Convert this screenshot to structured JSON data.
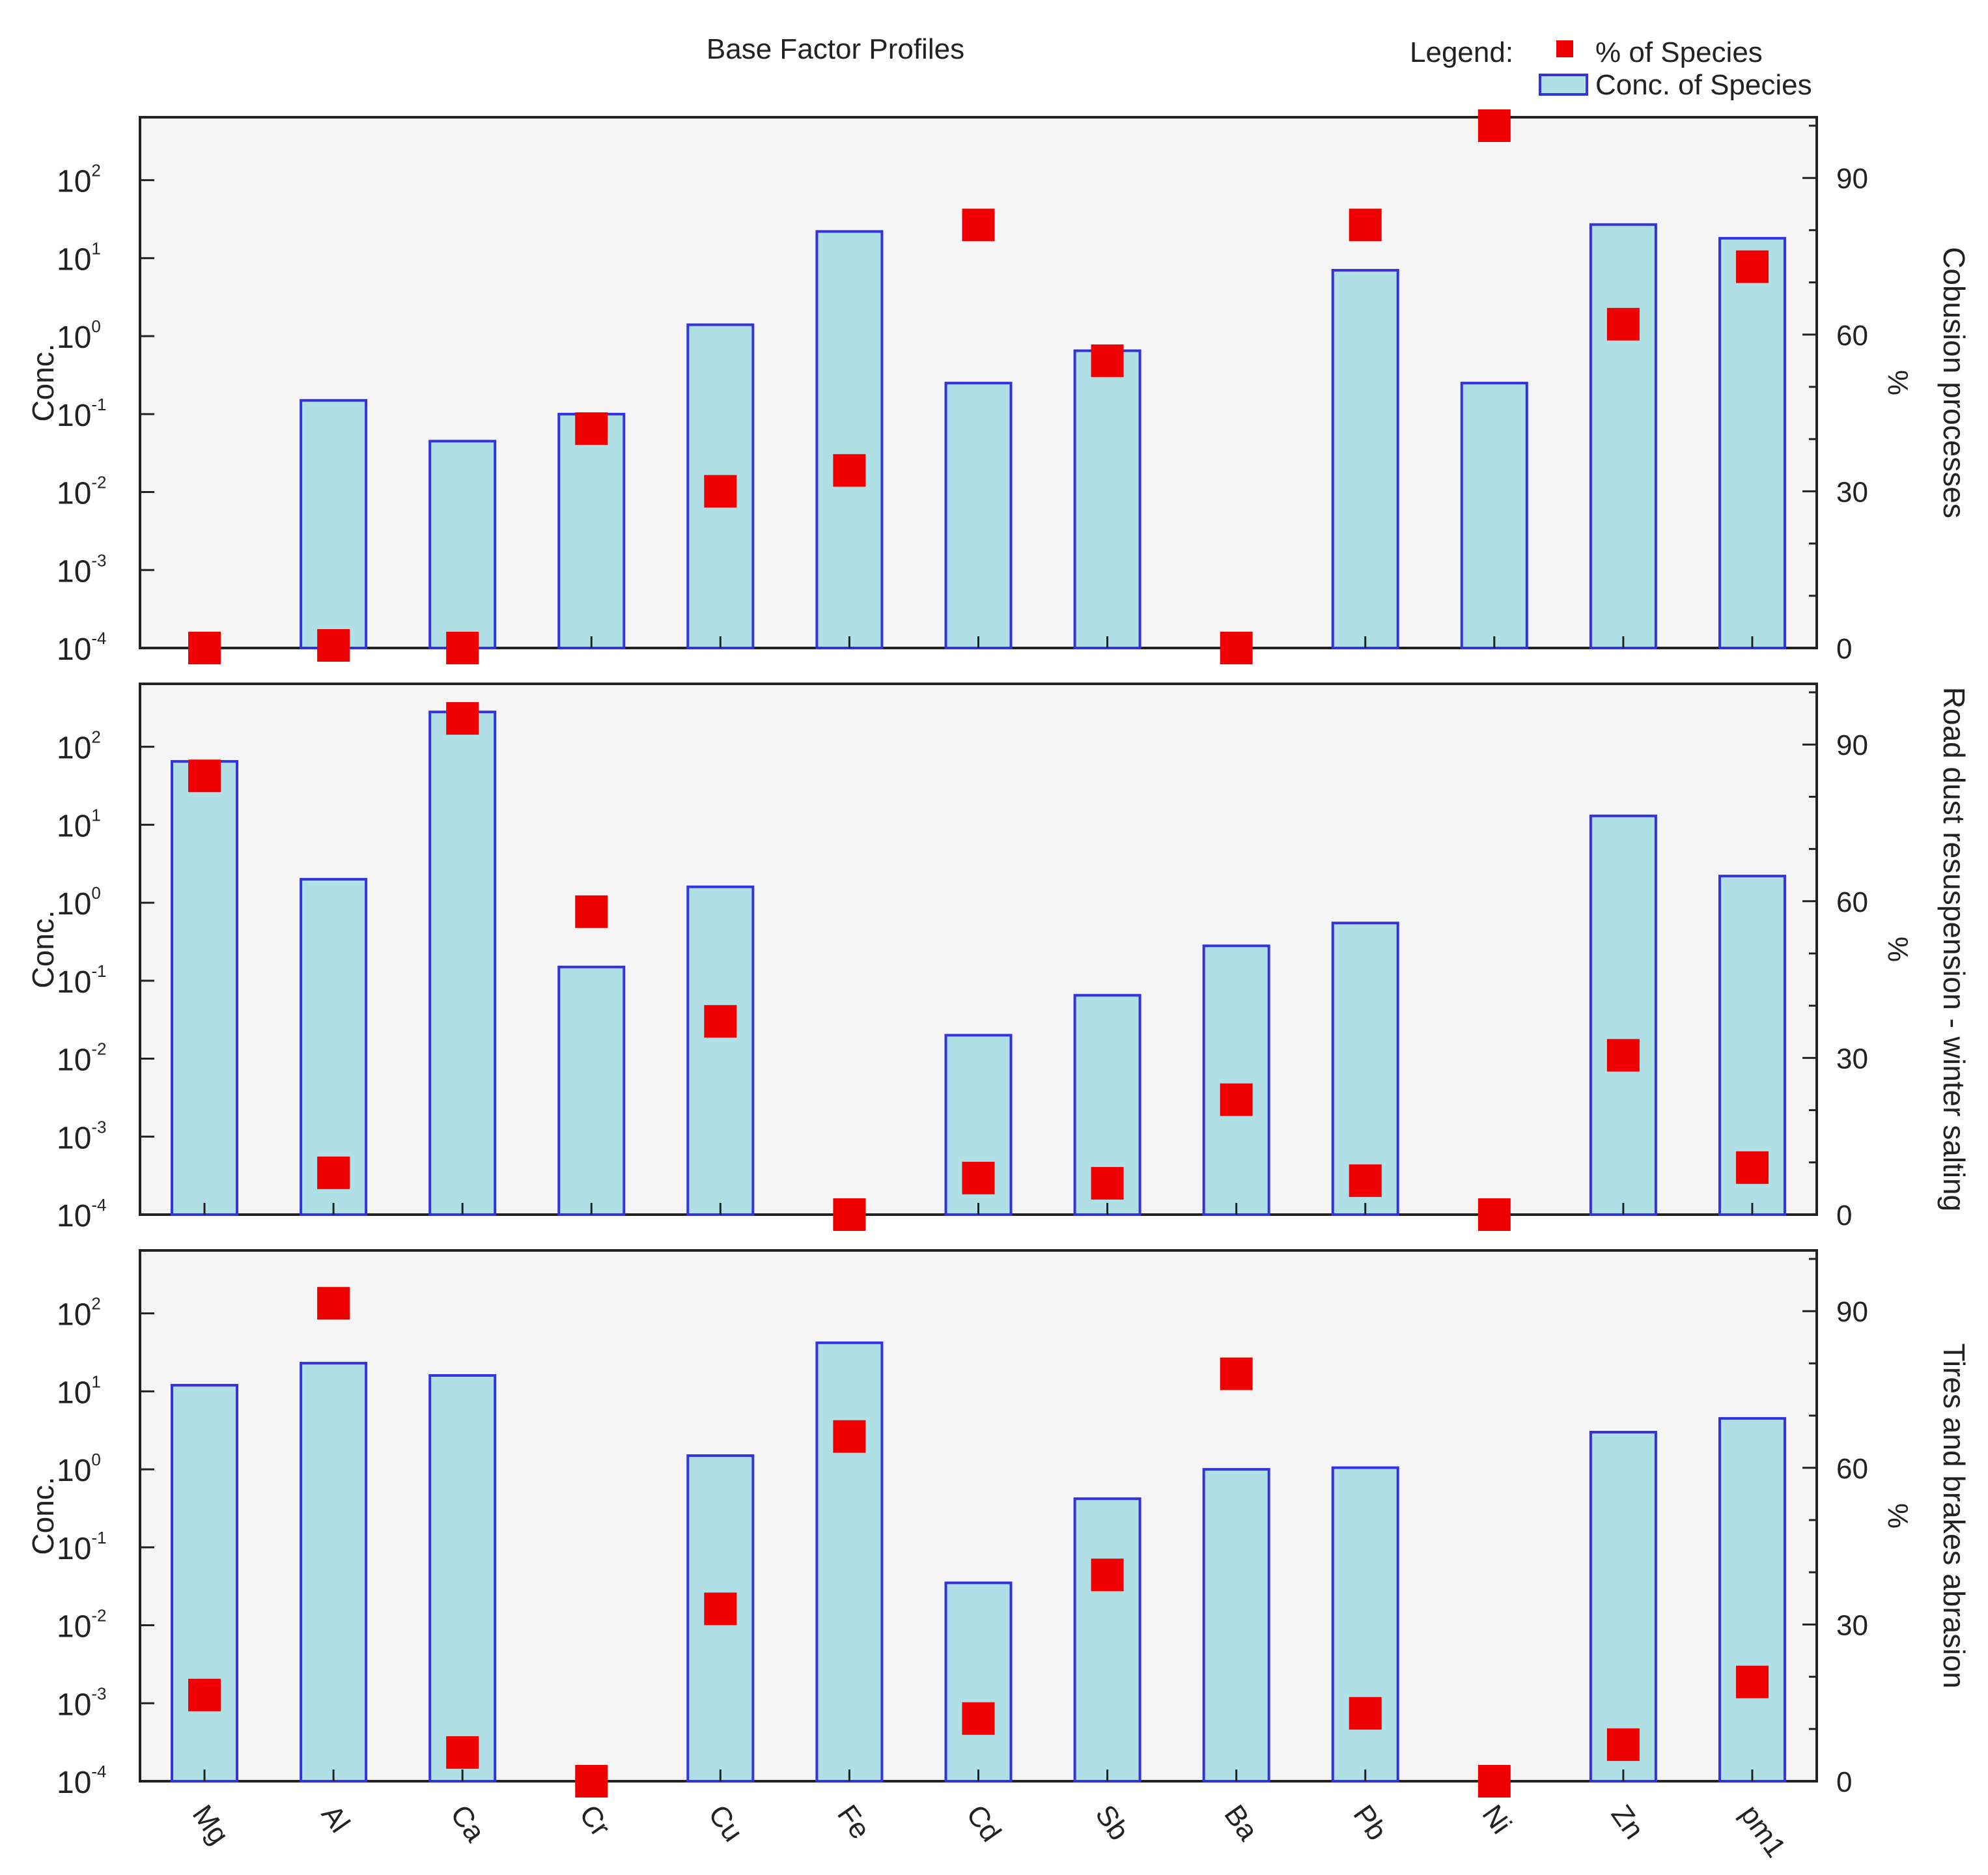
{
  "chart_data": {
    "type": "bar",
    "title": "Base Factor Profiles",
    "legend": {
      "label": "Legend:",
      "placement": "top-right",
      "entries": [
        {
          "name": "% of Species",
          "marker": "square",
          "color": "#ee0000"
        },
        {
          "name": "Conc. of Species",
          "marker": "bar",
          "color": "#b0e0e6",
          "stroke": "#3333dd"
        }
      ]
    },
    "categories": [
      "Mg",
      "Al",
      "Ca",
      "Cr",
      "Cu",
      "Fe",
      "Cd",
      "Sb",
      "Ba",
      "Pb",
      "Ni",
      "Zn",
      "pm1"
    ],
    "left_axis": {
      "label": "Conc.",
      "scale": "log",
      "range": [
        0.0001,
        500
      ],
      "ticks": [
        {
          "base": "10",
          "exp": "2",
          "value": 100
        },
        {
          "base": "10",
          "exp": "1",
          "value": 10
        },
        {
          "base": "10",
          "exp": "0",
          "value": 1
        },
        {
          "base": "10",
          "exp": "-1",
          "value": 0.1
        },
        {
          "base": "10",
          "exp": "-2",
          "value": 0.01
        },
        {
          "base": "10",
          "exp": "-3",
          "value": 0.001
        },
        {
          "base": "10",
          "exp": "-4",
          "value": 0.0001
        }
      ]
    },
    "right_axis": {
      "label": "%",
      "scale": "linear",
      "range": [
        0,
        100
      ],
      "ticks": [
        "90",
        "60",
        "30",
        "0"
      ]
    },
    "panels": [
      {
        "name": "Cobusion processes",
        "conc": [
          null,
          0.15,
          0.045,
          0.1,
          1.4,
          22,
          0.25,
          0.65,
          null,
          7,
          0.25,
          27,
          18
        ],
        "percent": [
          0,
          0.5,
          0,
          42,
          30,
          34,
          81,
          55,
          0,
          81,
          100,
          62,
          73
        ]
      },
      {
        "name": "Road dust resuspension - winter salting",
        "conc": [
          65,
          2,
          280,
          0.15,
          1.6,
          null,
          0.02,
          0.065,
          0.28,
          0.55,
          null,
          13,
          2.2
        ],
        "percent": [
          84,
          8,
          95,
          58,
          37,
          0,
          7,
          6,
          22,
          6.5,
          0,
          30.5,
          9
        ]
      },
      {
        "name": "Tires and brakes abrasion",
        "conc": [
          12,
          23,
          16,
          null,
          1.5,
          42,
          0.035,
          0.42,
          1,
          1.05,
          null,
          3,
          4.5
        ],
        "percent": [
          16.5,
          91.5,
          5.5,
          0,
          33,
          66,
          12,
          39.5,
          78,
          13,
          0,
          7,
          19
        ]
      }
    ]
  }
}
